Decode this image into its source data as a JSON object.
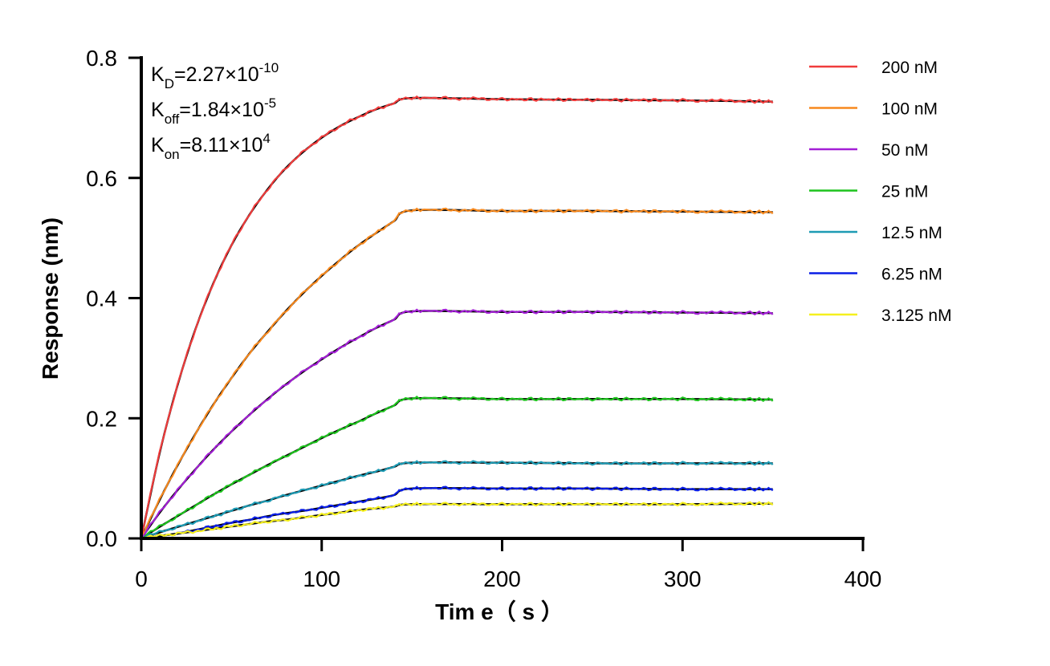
{
  "chart_data": {
    "type": "line",
    "title": "",
    "xlabel": "Tim e（ s ）",
    "ylabel": "Response (nm)",
    "xlim": [
      0,
      400
    ],
    "ylim": [
      0,
      0.8
    ],
    "xticks": [
      "0",
      "100",
      "200",
      "300",
      "400"
    ],
    "yticks": [
      "0.0",
      "0.2",
      "0.4",
      "0.6",
      "0.8"
    ],
    "grid": false,
    "legend_position": "right",
    "fit_color": "#000000",
    "annotations": [
      {
        "base": "K",
        "sub": "D",
        "value": "=2.27×10",
        "exp": "-10"
      },
      {
        "base": "K",
        "sub": "off",
        "value": "=1.84×10",
        "exp": "-5"
      },
      {
        "base": "K",
        "sub": "on",
        "value": "=8.11×10",
        "exp": "4"
      }
    ],
    "x": [
      0,
      10,
      20,
      30,
      40,
      50,
      60,
      70,
      80,
      90,
      100,
      110,
      120,
      130,
      140,
      150,
      200,
      250,
      300,
      350
    ],
    "series": [
      {
        "name": "200 nM",
        "color": "#f03c3c",
        "values": [
          0,
          0.14,
          0.254,
          0.348,
          0.425,
          0.488,
          0.539,
          0.581,
          0.616,
          0.644,
          0.667,
          0.686,
          0.701,
          0.714,
          0.724,
          0.733,
          0.731,
          0.73,
          0.729,
          0.727
        ]
      },
      {
        "name": "100 nM",
        "color": "#f7891e",
        "values": [
          0,
          0.063,
          0.121,
          0.174,
          0.223,
          0.267,
          0.308,
          0.344,
          0.378,
          0.409,
          0.437,
          0.463,
          0.487,
          0.508,
          0.528,
          0.546,
          0.545,
          0.545,
          0.544,
          0.543
        ]
      },
      {
        "name": "50 nM",
        "color": "#a31fd6",
        "values": [
          0,
          0.042,
          0.08,
          0.115,
          0.148,
          0.178,
          0.206,
          0.232,
          0.256,
          0.278,
          0.298,
          0.317,
          0.334,
          0.35,
          0.364,
          0.378,
          0.377,
          0.377,
          0.376,
          0.375
        ]
      },
      {
        "name": "25 nM",
        "color": "#1ec31e",
        "values": [
          0,
          0.019,
          0.037,
          0.055,
          0.073,
          0.09,
          0.106,
          0.122,
          0.137,
          0.152,
          0.167,
          0.181,
          0.194,
          0.208,
          0.221,
          0.233,
          0.232,
          0.232,
          0.232,
          0.231
        ]
      },
      {
        "name": "12.5 nM",
        "color": "#1e9bb4",
        "values": [
          0,
          0.01,
          0.019,
          0.028,
          0.037,
          0.046,
          0.055,
          0.063,
          0.072,
          0.08,
          0.088,
          0.096,
          0.104,
          0.111,
          0.119,
          0.126,
          0.126,
          0.125,
          0.125,
          0.125
        ]
      },
      {
        "name": "6.25 nM",
        "color": "#0a1ee6",
        "values": [
          0,
          0.004,
          0.008,
          0.014,
          0.02,
          0.026,
          0.031,
          0.037,
          0.042,
          0.046,
          0.051,
          0.056,
          0.061,
          0.066,
          0.072,
          0.083,
          0.083,
          0.083,
          0.082,
          0.082
        ]
      },
      {
        "name": "3.125 nM",
        "color": "#f5f01e",
        "values": [
          0,
          0.004,
          0.008,
          0.012,
          0.016,
          0.02,
          0.024,
          0.028,
          0.031,
          0.035,
          0.039,
          0.043,
          0.047,
          0.05,
          0.053,
          0.057,
          0.057,
          0.057,
          0.057,
          0.058
        ]
      }
    ]
  }
}
